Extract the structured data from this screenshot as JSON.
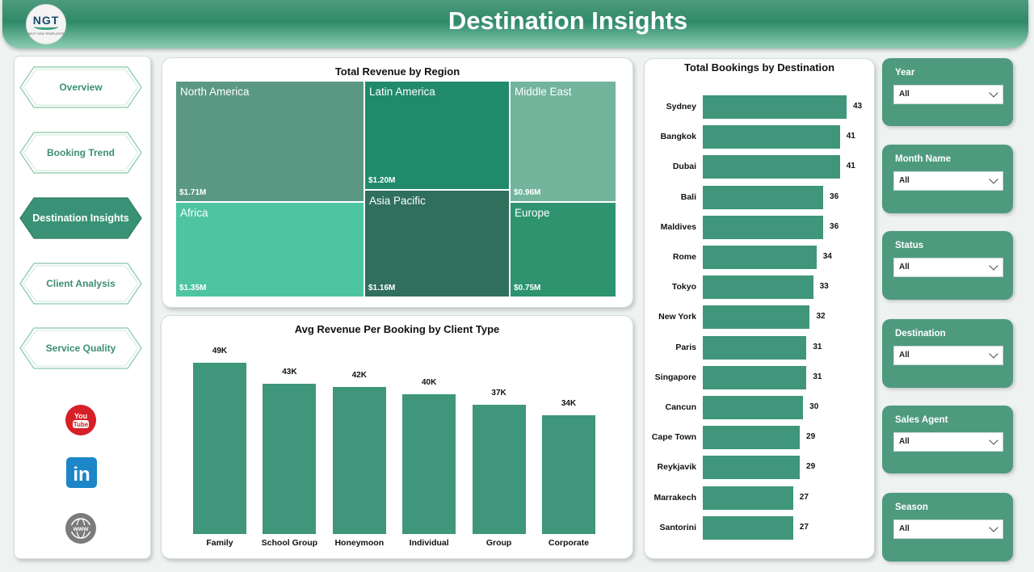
{
  "header": {
    "title": "Destination Insights",
    "logo_text": "NGT",
    "logo_subtext": "NEXT GEN TEMPLATES"
  },
  "nav": {
    "items": [
      {
        "label": "Overview",
        "active": false
      },
      {
        "label": "Booking Trend",
        "active": false
      },
      {
        "label": "Destination Insights",
        "active": true
      },
      {
        "label": "Client Analysis",
        "active": false
      },
      {
        "label": "Service Quality",
        "active": false
      }
    ],
    "social": [
      {
        "icon": "youtube-icon",
        "text": "You Tube",
        "color": "#d61f26"
      },
      {
        "icon": "linkedin-icon",
        "text": "in",
        "color": "#1c86c8"
      },
      {
        "icon": "globe-icon",
        "text": "www",
        "color": "#7b7b7b"
      }
    ]
  },
  "treemap": {
    "title": "Total Revenue by Region",
    "cells": [
      {
        "name": "North America",
        "value": "$1.71M",
        "color": "#5a9883"
      },
      {
        "name": "Latin America",
        "value": "$1.20M",
        "color": "#218a6b"
      },
      {
        "name": "Middle East",
        "value": "$0.96M",
        "color": "#72b49c"
      },
      {
        "name": "Africa",
        "value": "$1.35M",
        "color": "#4ec5a0"
      },
      {
        "name": "Asia Pacific",
        "value": "$1.16M",
        "color": "#2f6f5c"
      },
      {
        "name": "Europe",
        "value": "$0.75M",
        "color": "#2e9470"
      }
    ]
  },
  "chart_data": [
    {
      "type": "bar",
      "title": "Avg Revenue Per Booking by Client Type",
      "categories": [
        "Family",
        "School Group",
        "Honeymoon",
        "Individual",
        "Group",
        "Corporate"
      ],
      "values": [
        49,
        43,
        42,
        40,
        37,
        34
      ],
      "data_labels": [
        "49K",
        "43K",
        "42K",
        "40K",
        "37K",
        "34K"
      ],
      "unit": "K",
      "ylim": [
        0,
        49
      ],
      "color": "#3f967a"
    },
    {
      "type": "bar",
      "orientation": "horizontal",
      "title": "Total Bookings by Destination",
      "categories": [
        "Sydney",
        "Bangkok",
        "Dubai",
        "Bali",
        "Maldives",
        "Rome",
        "Tokyo",
        "New York",
        "Paris",
        "Singapore",
        "Cancun",
        "Cape Town",
        "Reykjavik",
        "Marrakech",
        "Santorini"
      ],
      "values": [
        43,
        41,
        41,
        36,
        36,
        34,
        33,
        32,
        31,
        31,
        30,
        29,
        29,
        27,
        27
      ],
      "ylim": [
        0,
        43
      ],
      "color": "#3f967a"
    }
  ],
  "slicers": [
    {
      "label": "Year",
      "value": "All"
    },
    {
      "label": "Month Name",
      "value": "All"
    },
    {
      "label": "Status",
      "value": "All"
    },
    {
      "label": "Destination",
      "value": "All"
    },
    {
      "label": "Sales Agent",
      "value": "All"
    },
    {
      "label": "Season",
      "value": "All"
    }
  ]
}
